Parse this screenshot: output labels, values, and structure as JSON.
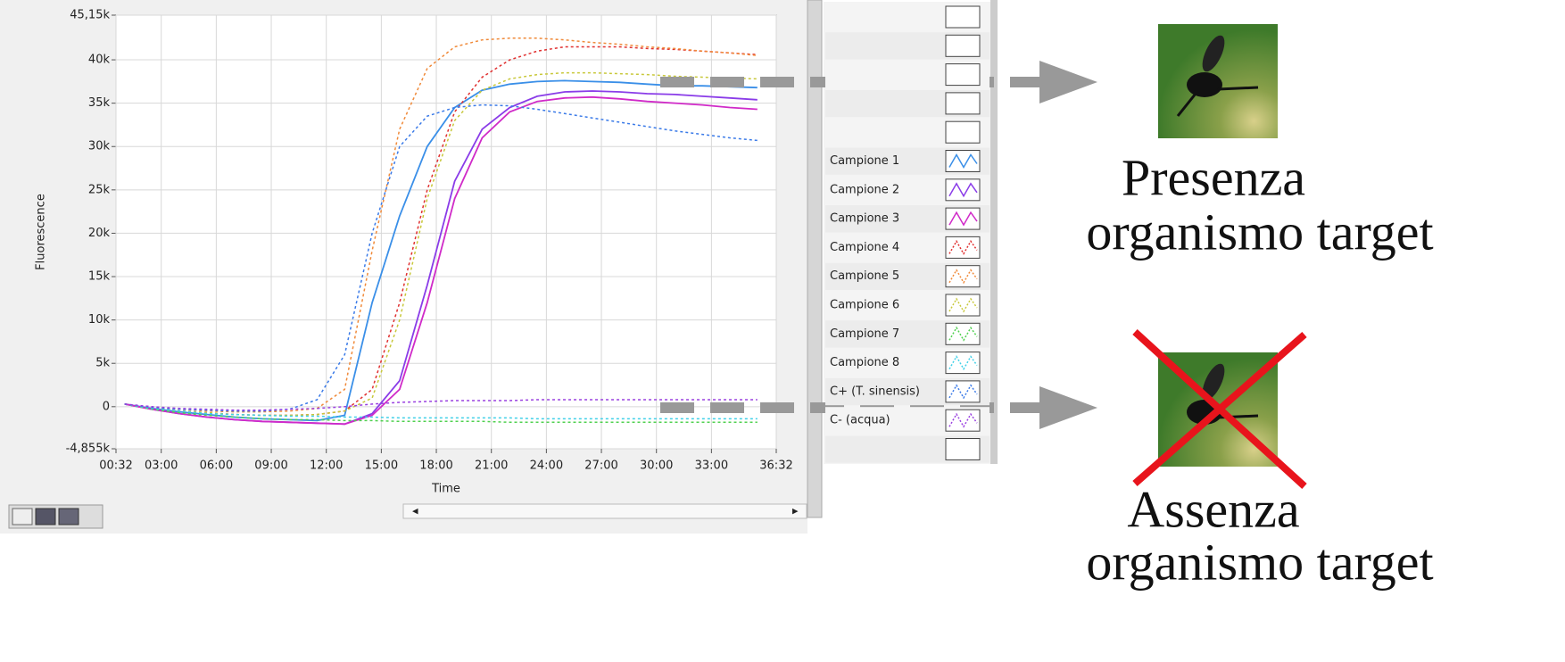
{
  "chart_data": {
    "type": "line",
    "xlabel": "Time",
    "ylabel": "Fluorescence",
    "x": [
      60,
      150,
      240,
      330,
      420,
      510,
      600,
      690,
      780,
      870,
      960,
      1050,
      1140,
      1230,
      1320,
      1410,
      1500,
      1590,
      1680,
      1770,
      1860,
      1950,
      2040,
      2130
    ],
    "xlim": [
      32,
      2192
    ],
    "xticks": [
      {
        "value": 32,
        "label": "00:32"
      },
      {
        "value": 180,
        "label": "03:00"
      },
      {
        "value": 360,
        "label": "06:00"
      },
      {
        "value": 540,
        "label": "09:00"
      },
      {
        "value": 720,
        "label": "12:00"
      },
      {
        "value": 900,
        "label": "15:00"
      },
      {
        "value": 1080,
        "label": "18:00"
      },
      {
        "value": 1260,
        "label": "21:00"
      },
      {
        "value": 1440,
        "label": "24:00"
      },
      {
        "value": 1620,
        "label": "27:00"
      },
      {
        "value": 1800,
        "label": "30:00"
      },
      {
        "value": 1980,
        "label": "33:00"
      },
      {
        "value": 2192,
        "label": "36:32"
      }
    ],
    "ylim": [
      -4855,
      45150
    ],
    "yticks": [
      {
        "value": -4855,
        "label": "-4,855k"
      },
      0,
      {
        "value": 5000,
        "label": "5k"
      },
      {
        "value": 10000,
        "label": "10k"
      },
      {
        "value": 15000,
        "label": "15k"
      },
      {
        "value": 20000,
        "label": "20k"
      },
      {
        "value": 25000,
        "label": "25k"
      },
      {
        "value": 30000,
        "label": "30k"
      },
      {
        "value": 35000,
        "label": "35k"
      },
      {
        "value": 40000,
        "label": "40k"
      },
      {
        "value": 45150,
        "label": "45,15k"
      }
    ],
    "grid": true,
    "series": [
      {
        "name": "Campione 1",
        "color": "#3a8fe8",
        "style": "solid",
        "values": [
          300,
          -200,
          -600,
          -900,
          -1200,
          -1400,
          -1500,
          -1600,
          -1000,
          12000,
          22000,
          30000,
          34500,
          36500,
          37200,
          37500,
          37600,
          37500,
          37400,
          37200,
          37000,
          37000,
          36900,
          36800
        ]
      },
      {
        "name": "Campione 2",
        "color": "#8a3ce8",
        "style": "solid",
        "values": [
          300,
          -300,
          -800,
          -1200,
          -1500,
          -1700,
          -1800,
          -1900,
          -2000,
          -800,
          3000,
          14000,
          26000,
          32000,
          34500,
          35800,
          36300,
          36400,
          36300,
          36100,
          36000,
          35800,
          35600,
          35400
        ]
      },
      {
        "name": "Campione 3",
        "color": "#d02ac8",
        "style": "solid",
        "values": [
          300,
          -300,
          -800,
          -1200,
          -1500,
          -1700,
          -1800,
          -1900,
          -2000,
          -1000,
          2000,
          12000,
          24000,
          31000,
          34000,
          35200,
          35600,
          35700,
          35500,
          35200,
          35000,
          34800,
          34500,
          34300
        ]
      },
      {
        "name": "Campione 4",
        "color": "#e03030",
        "style": "dashed",
        "values": [
          300,
          -200,
          -500,
          -700,
          -900,
          -1000,
          -1000,
          -900,
          -500,
          2000,
          12000,
          25000,
          34000,
          38000,
          40000,
          41000,
          41500,
          41500,
          41500,
          41300,
          41200,
          41000,
          40800,
          40600
        ]
      },
      {
        "name": "Campione 5",
        "color": "#f08a3a",
        "style": "dashed",
        "values": [
          300,
          -100,
          -300,
          -500,
          -600,
          -600,
          -500,
          -200,
          2000,
          18000,
          32000,
          39000,
          41500,
          42300,
          42500,
          42500,
          42300,
          42000,
          41800,
          41500,
          41300,
          41000,
          40800,
          40500
        ]
      },
      {
        "name": "Campione 6",
        "color": "#c8c83a",
        "style": "dashed",
        "values": [
          300,
          -200,
          -500,
          -700,
          -900,
          -1000,
          -1000,
          -900,
          -500,
          1000,
          10000,
          24000,
          33000,
          36500,
          37800,
          38300,
          38500,
          38500,
          38400,
          38300,
          38100,
          38000,
          37900,
          37800
        ]
      },
      {
        "name": "Campione 7",
        "color": "#50d050",
        "style": "dashed",
        "values": [
          300,
          -300,
          -700,
          -1000,
          -1200,
          -1400,
          -1500,
          -1500,
          -1600,
          -1600,
          -1700,
          -1700,
          -1700,
          -1700,
          -1800,
          -1800,
          -1800,
          -1800,
          -1800,
          -1800,
          -1800,
          -1800,
          -1800,
          -1800
        ]
      },
      {
        "name": "Campione 8",
        "color": "#40d0e8",
        "style": "dashed",
        "values": [
          300,
          -200,
          -500,
          -800,
          -900,
          -1000,
          -1100,
          -1100,
          -1200,
          -1200,
          -1300,
          -1300,
          -1300,
          -1300,
          -1300,
          -1400,
          -1400,
          -1400,
          -1400,
          -1400,
          -1400,
          -1400,
          -1400,
          -1400
        ]
      },
      {
        "name": "C+ (T. sinensis)",
        "color": "#3a7ae8",
        "style": "dashed",
        "values": [
          300,
          -100,
          -300,
          -400,
          -500,
          -500,
          -300,
          800,
          6000,
          20000,
          30000,
          33500,
          34500,
          34800,
          34700,
          34300,
          33800,
          33300,
          32800,
          32300,
          31800,
          31400,
          31000,
          30700
        ]
      },
      {
        "name": "C- (acqua)",
        "color": "#9a40e0",
        "style": "dashed",
        "values": [
          300,
          0,
          -200,
          -300,
          -400,
          -400,
          -300,
          -200,
          0,
          300,
          500,
          600,
          700,
          700,
          700,
          800,
          800,
          800,
          800,
          800,
          800,
          800,
          800,
          800
        ]
      }
    ]
  },
  "labels": {
    "presence": {
      "line1": "Presenza",
      "line2": "organismo target"
    },
    "absence": {
      "line1": "Assenza",
      "line2": "organismo target"
    }
  }
}
